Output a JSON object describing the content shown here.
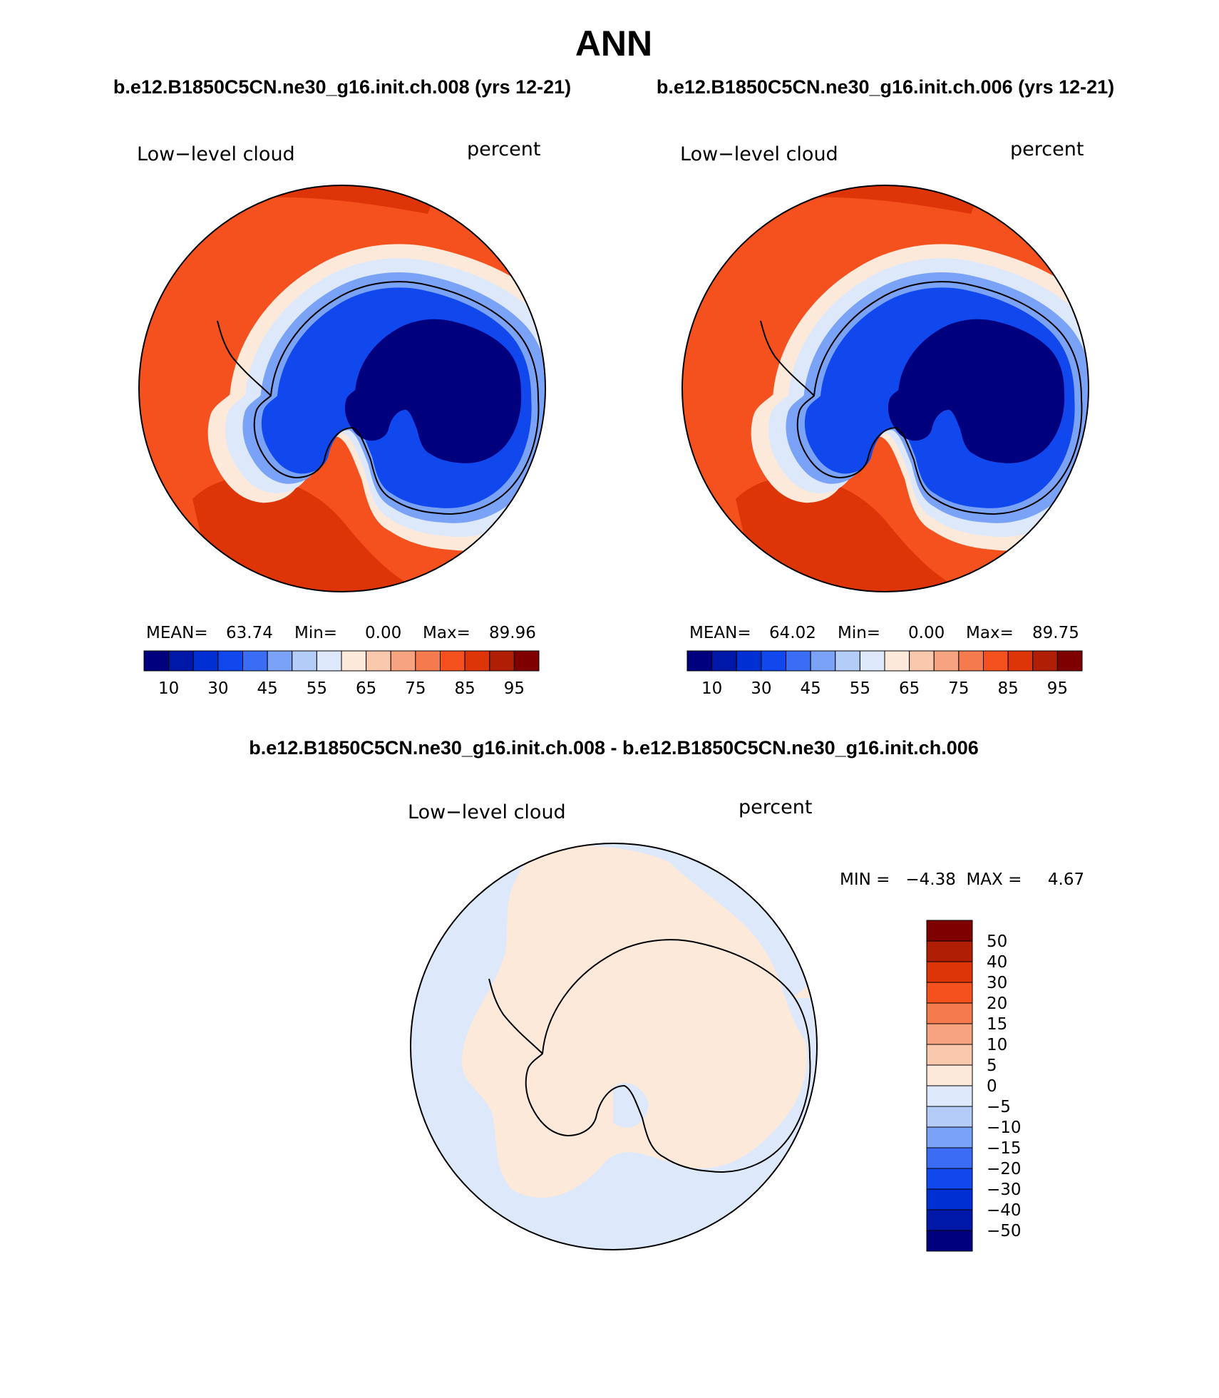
{
  "page": {
    "title": "ANN",
    "subtitle_left": "b.e12.B1850C5CN.ne30_g16.init.ch.008 (yrs 12-21)",
    "subtitle_right": "b.e12.B1850C5CN.ne30_g16.init.ch.006 (yrs 12-21)",
    "diff_title": "b.e12.B1850C5CN.ne30_g16.init.ch.008 - b.e12.B1850C5CN.ne30_g16.init.ch.006"
  },
  "panels": [
    {
      "variable": "Low−level cloud",
      "units": "percent",
      "stats": {
        "mean_label": "MEAN=",
        "mean": "63.74",
        "min_label": "Min=",
        "min": "0.00",
        "max_label": "Max=",
        "max": "89.96"
      }
    },
    {
      "variable": "Low−level cloud",
      "units": "percent",
      "stats": {
        "mean_label": "MEAN=",
        "mean": "64.02",
        "min_label": "Min=",
        "min": "0.00",
        "max_label": "Max=",
        "max": "89.75"
      }
    }
  ],
  "diff_panel": {
    "variable": "Low−level cloud",
    "units": "percent",
    "stats_text": "MIN =   −4.38  MAX =     4.67"
  },
  "colorbar_main": {
    "colors": [
      "#00007f",
      "#0018a8",
      "#0030d4",
      "#1048ee",
      "#3a6cf4",
      "#7aa2f6",
      "#b3ccf8",
      "#dde9fb",
      "#fde9da",
      "#fac8ac",
      "#f7a37f",
      "#f57a4e",
      "#f4511e",
      "#de3508",
      "#b11e06",
      "#7f0000"
    ],
    "tick_labels": [
      "10",
      "30",
      "45",
      "55",
      "65",
      "75",
      "85",
      "95"
    ]
  },
  "colorbar_diff": {
    "colors": [
      "#00007f",
      "#0018a8",
      "#0030d4",
      "#1048ee",
      "#3a6cf4",
      "#7aa2f6",
      "#b3ccf8",
      "#dde9fb",
      "#fde9da",
      "#fac8ac",
      "#f7a37f",
      "#f57a4e",
      "#f4511e",
      "#de3508",
      "#b11e06",
      "#7f0000"
    ],
    "tick_labels": [
      "50",
      "40",
      "30",
      "20",
      "15",
      "10",
      "5",
      "0",
      "−5",
      "−10",
      "−15",
      "−20",
      "−30",
      "−40",
      "−50"
    ]
  },
  "map_colors": {
    "ocean_high": "#f4511e",
    "ocean_peak": "#de3508",
    "ocean_edge": "#f7a37f",
    "transition_light": "#fde9da",
    "ice_light": "#dde9fb",
    "ice_mid": "#7aa2f6",
    "ice_blue": "#1048ee",
    "ice_core": "#00007f",
    "diff_neg": "#dde9fb",
    "diff_pos": "#fde9da"
  }
}
